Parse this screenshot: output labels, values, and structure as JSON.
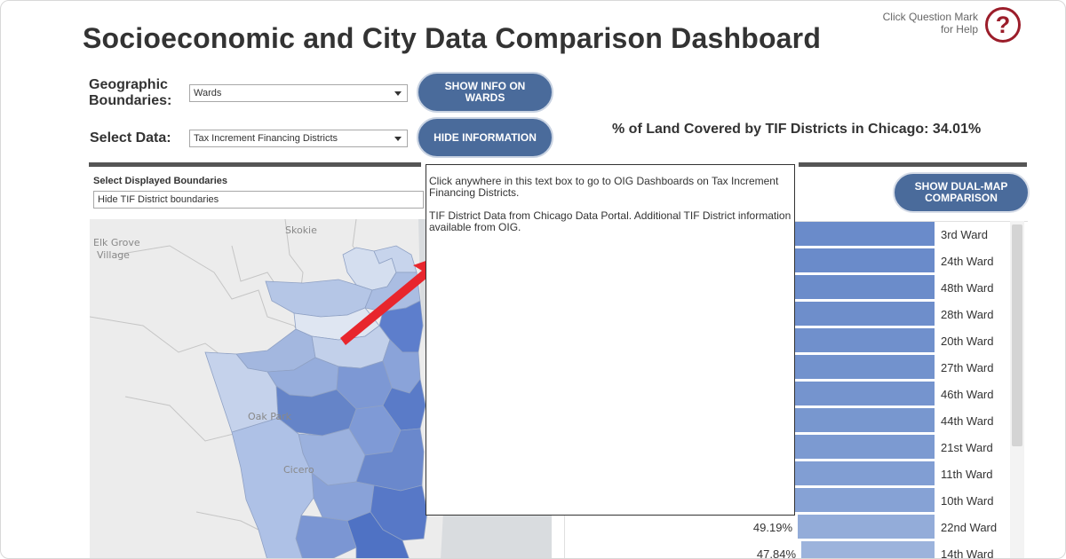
{
  "header": {
    "title": "Socioeconomic and City Data Comparison Dashboard",
    "help_text_line1": "Click Question Mark",
    "help_text_line2": "for Help",
    "help_icon_glyph": "?"
  },
  "controls": {
    "geo_label_line1": "Geographic",
    "geo_label_line2": "Boundaries:",
    "geo_value": "Wards",
    "data_label": "Select Data:",
    "data_value": "Tax Increment Financing Districts",
    "show_info_line1": "SHOW INFO ON",
    "show_info_line2": "WARDS",
    "hide_info": "HIDE INFORMATION",
    "tif_stat": "% of Land Covered by TIF Districts in Chicago: 34.01%",
    "boundaries_label": "Select Displayed Boundaries",
    "boundaries_value": "Hide TIF District boundaries",
    "dual_map_line1": "SHOW DUAL-MAP",
    "dual_map_line2": "COMPARISON"
  },
  "map": {
    "labels": {
      "elk_grove_1": "Elk Grove",
      "elk_grove_2": "Village",
      "skokie": "Skokie",
      "oak_park": "Oak Park",
      "cicero": "Cicero"
    }
  },
  "popup": {
    "para1": "Click anywhere in this text box to go to OIG Dashboards on Tax Increment Financing Districts.",
    "para2": "TIF District Data from Chicago Data Portal. Additional TIF District information available from OIG."
  },
  "chart_data": {
    "type": "bar",
    "orientation": "horizontal",
    "categories": [
      "3rd Ward",
      "24th Ward",
      "48th Ward",
      "28th Ward",
      "20th Ward",
      "27th Ward",
      "46th Ward",
      "44th Ward",
      "21st Ward",
      "11th Ward",
      "10th Ward",
      "22nd Ward",
      "14th Ward"
    ],
    "value_labels": [
      "",
      "",
      "",
      "",
      "",
      "",
      "",
      "",
      "",
      "",
      "",
      "49.19%",
      "47.84%"
    ],
    "values": [
      null,
      null,
      null,
      null,
      null,
      null,
      null,
      null,
      null,
      null,
      null,
      49.19,
      47.84
    ],
    "bar_colors": [
      "#6a8bca",
      "#6a8bca",
      "#6b8cca",
      "#6e8ecb",
      "#7090cc",
      "#7292cd",
      "#7594ce",
      "#7897cf",
      "#7c9ad1",
      "#819ed3",
      "#86a2d5",
      "#93acd9",
      "#9cb3dc"
    ]
  }
}
